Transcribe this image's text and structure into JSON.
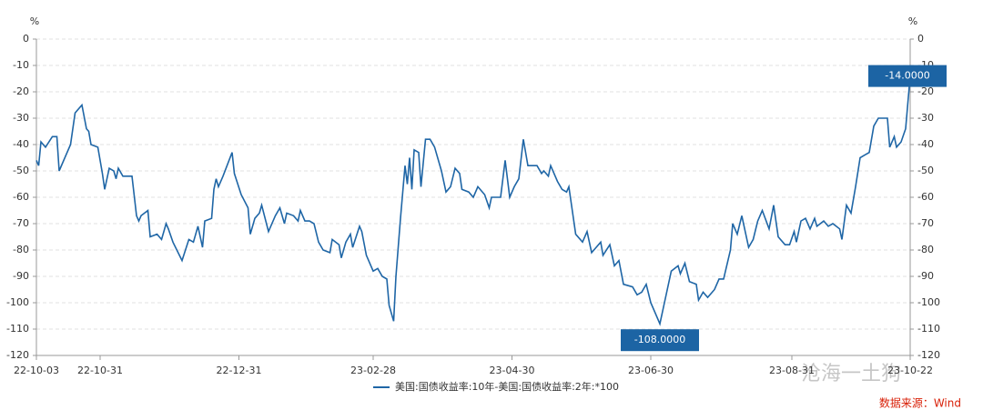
{
  "chart_data": {
    "type": "line",
    "y_unit": "%",
    "y2_unit": "%",
    "x": [
      "22-10-03",
      "22-10-04",
      "22-10-05",
      "22-10-07",
      "22-10-10",
      "22-10-12",
      "22-10-13",
      "22-10-16",
      "22-10-18",
      "22-10-20",
      "22-10-23",
      "22-10-25",
      "22-10-26",
      "22-10-27",
      "22-10-30",
      "22-11-01",
      "22-11-02",
      "22-11-04",
      "22-11-06",
      "22-11-07",
      "22-11-08",
      "22-11-10",
      "22-11-14",
      "22-11-16",
      "22-11-17",
      "22-11-18",
      "22-11-21",
      "22-11-22",
      "22-11-25",
      "22-11-27",
      "22-11-29",
      "22-11-30",
      "22-12-02",
      "22-12-06",
      "22-12-09",
      "22-12-11",
      "22-12-13",
      "22-12-15",
      "22-12-16",
      "22-12-19",
      "22-12-20",
      "22-12-21",
      "22-12-22",
      "22-12-24",
      "22-12-28",
      "22-12-29",
      "23-01-01",
      "23-01-04",
      "23-01-05",
      "23-01-07",
      "23-01-09",
      "23-01-10",
      "23-01-13",
      "23-01-16",
      "23-01-18",
      "23-01-20",
      "23-01-21",
      "23-01-24",
      "23-01-26",
      "23-01-27",
      "23-01-29",
      "23-01-31",
      "23-02-02",
      "23-02-04",
      "23-02-06",
      "23-02-09",
      "23-02-10",
      "23-02-13",
      "23-02-14",
      "23-02-16",
      "23-02-18",
      "23-02-19",
      "23-02-22",
      "23-02-23",
      "23-02-25",
      "23-02-28",
      "23-03-02",
      "23-03-04",
      "23-03-06",
      "23-03-07",
      "23-03-09",
      "23-03-10",
      "23-03-12",
      "23-03-14",
      "23-03-15",
      "23-03-16",
      "23-03-17",
      "23-03-18",
      "23-03-20",
      "23-03-21",
      "23-03-23",
      "23-03-25",
      "23-03-27",
      "23-03-30",
      "23-04-01",
      "23-04-03",
      "23-04-05",
      "23-04-07",
      "23-04-08",
      "23-04-11",
      "23-04-13",
      "23-04-15",
      "23-04-18",
      "23-04-20",
      "23-04-21",
      "23-04-25",
      "23-04-27",
      "23-04-29",
      "23-05-01",
      "23-05-03",
      "23-05-05",
      "23-05-07",
      "23-05-11",
      "23-05-13",
      "23-05-14",
      "23-05-16",
      "23-05-17",
      "23-05-20",
      "23-05-22",
      "23-05-24",
      "23-05-25",
      "23-05-28",
      "23-05-31",
      "23-06-02",
      "23-06-04",
      "23-06-06",
      "23-06-08",
      "23-06-09",
      "23-06-12",
      "23-06-14",
      "23-06-16",
      "23-06-18",
      "23-06-22",
      "23-06-24",
      "23-06-26",
      "23-06-28",
      "23-06-30",
      "23-07-02",
      "23-07-04",
      "23-07-06",
      "23-07-09",
      "23-07-12",
      "23-07-13",
      "23-07-15",
      "23-07-17",
      "23-07-20",
      "23-07-21",
      "23-07-23",
      "23-07-25",
      "23-07-28",
      "23-07-30",
      "23-08-01",
      "23-08-04",
      "23-08-05",
      "23-08-07",
      "23-08-09",
      "23-08-12",
      "23-08-14",
      "23-08-16",
      "23-08-18",
      "23-08-21",
      "23-08-23",
      "23-08-25",
      "23-08-28",
      "23-08-30",
      "23-09-01",
      "23-09-02",
      "23-09-04",
      "23-09-06",
      "23-09-08",
      "23-09-10",
      "23-09-11",
      "23-09-14",
      "23-09-16",
      "23-09-18",
      "23-09-21",
      "23-09-22",
      "23-09-24",
      "23-09-26",
      "23-09-28",
      "23-09-30",
      "23-10-02",
      "23-10-04",
      "23-10-06",
      "23-10-08",
      "23-10-12",
      "23-10-13",
      "23-10-15",
      "23-10-16",
      "23-10-18",
      "23-10-20",
      "23-10-22"
    ],
    "series": [
      {
        "name": "美国:国债收益率:10年-美国:国债收益率:2年:*100",
        "color": "#1f66a6",
        "values": [
          -46,
          -48,
          -39,
          -41,
          -37,
          -37,
          -50,
          -44,
          -40,
          -28,
          -25,
          -34,
          -35,
          -40,
          -41,
          -51,
          -57,
          -49,
          -50,
          -53,
          -49,
          -52,
          -52,
          -67,
          -69,
          -67,
          -65,
          -75,
          -74,
          -76,
          -70,
          -72,
          -77,
          -84,
          -76,
          -77,
          -71,
          -79,
          -69,
          -68,
          -57,
          -53,
          -56,
          -52,
          -43,
          -51,
          -59,
          -64,
          -74,
          -68,
          -66,
          -63,
          -73,
          -67,
          -64,
          -70,
          -66,
          -67,
          -69,
          -65,
          -69,
          -69,
          -70,
          -77,
          -80,
          -81,
          -76,
          -78,
          -83,
          -77,
          -74,
          -79,
          -71,
          -73,
          -82,
          -88,
          -87,
          -90,
          -91,
          -101,
          -107,
          -90,
          -68,
          -48,
          -55,
          -45,
          -57,
          -42,
          -43,
          -56,
          -38,
          -38,
          -41,
          -50,
          -58,
          -56,
          -49,
          -51,
          -57,
          -58,
          -60,
          -56,
          -59,
          -64,
          -60,
          -60,
          -46,
          -60,
          -56,
          -53,
          -38,
          -48,
          -48,
          -51,
          -50,
          -52,
          -48,
          -54,
          -57,
          -58,
          -56,
          -74,
          -77,
          -73,
          -81,
          -79,
          -77,
          -82,
          -78,
          -86,
          -84,
          -93,
          -94,
          -97,
          -96,
          -93,
          -100,
          -104,
          -108,
          -100,
          -88,
          -86,
          -89,
          -85,
          -92,
          -93,
          -99,
          -96,
          -98,
          -95,
          -91,
          -91,
          -80,
          -70,
          -74,
          -67,
          -79,
          -76,
          -69,
          -65,
          -72,
          -63,
          -75,
          -78,
          -78,
          -73,
          -77,
          -69,
          -68,
          -72,
          -68,
          -71,
          -69,
          -71,
          -70,
          -72,
          -76,
          -63,
          -66,
          -56,
          -45,
          -44,
          -43,
          -33,
          -30,
          -30,
          -41,
          -37,
          -41,
          -39,
          -34,
          -14
        ]
      }
    ],
    "xlim": [
      "22-10-03",
      "23-10-22"
    ],
    "xticks": [
      "22-10-03",
      "22-10-31",
      "22-12-31",
      "23-02-28",
      "23-04-30",
      "23-06-30",
      "23-08-31",
      "23-10-22"
    ],
    "ylim": [
      -120,
      0
    ],
    "yticks": [
      0,
      -10,
      -20,
      -30,
      -40,
      -50,
      -60,
      -70,
      -80,
      -90,
      -100,
      -110,
      -120
    ],
    "y2lim": [
      -120,
      0
    ],
    "y2ticks": [
      0,
      -10,
      -20,
      -30,
      -40,
      -50,
      -60,
      -70,
      -80,
      -90,
      -100,
      -110,
      -120
    ],
    "grid": true,
    "legend": "bottom",
    "annotations": [
      {
        "x": "23-07-04",
        "y": -108,
        "label": "-108.0000"
      },
      {
        "x": "23-10-22",
        "y": -14,
        "label": "-14.0000"
      }
    ],
    "source": "数据来源：Wind",
    "watermark": "沧海一土狗"
  }
}
